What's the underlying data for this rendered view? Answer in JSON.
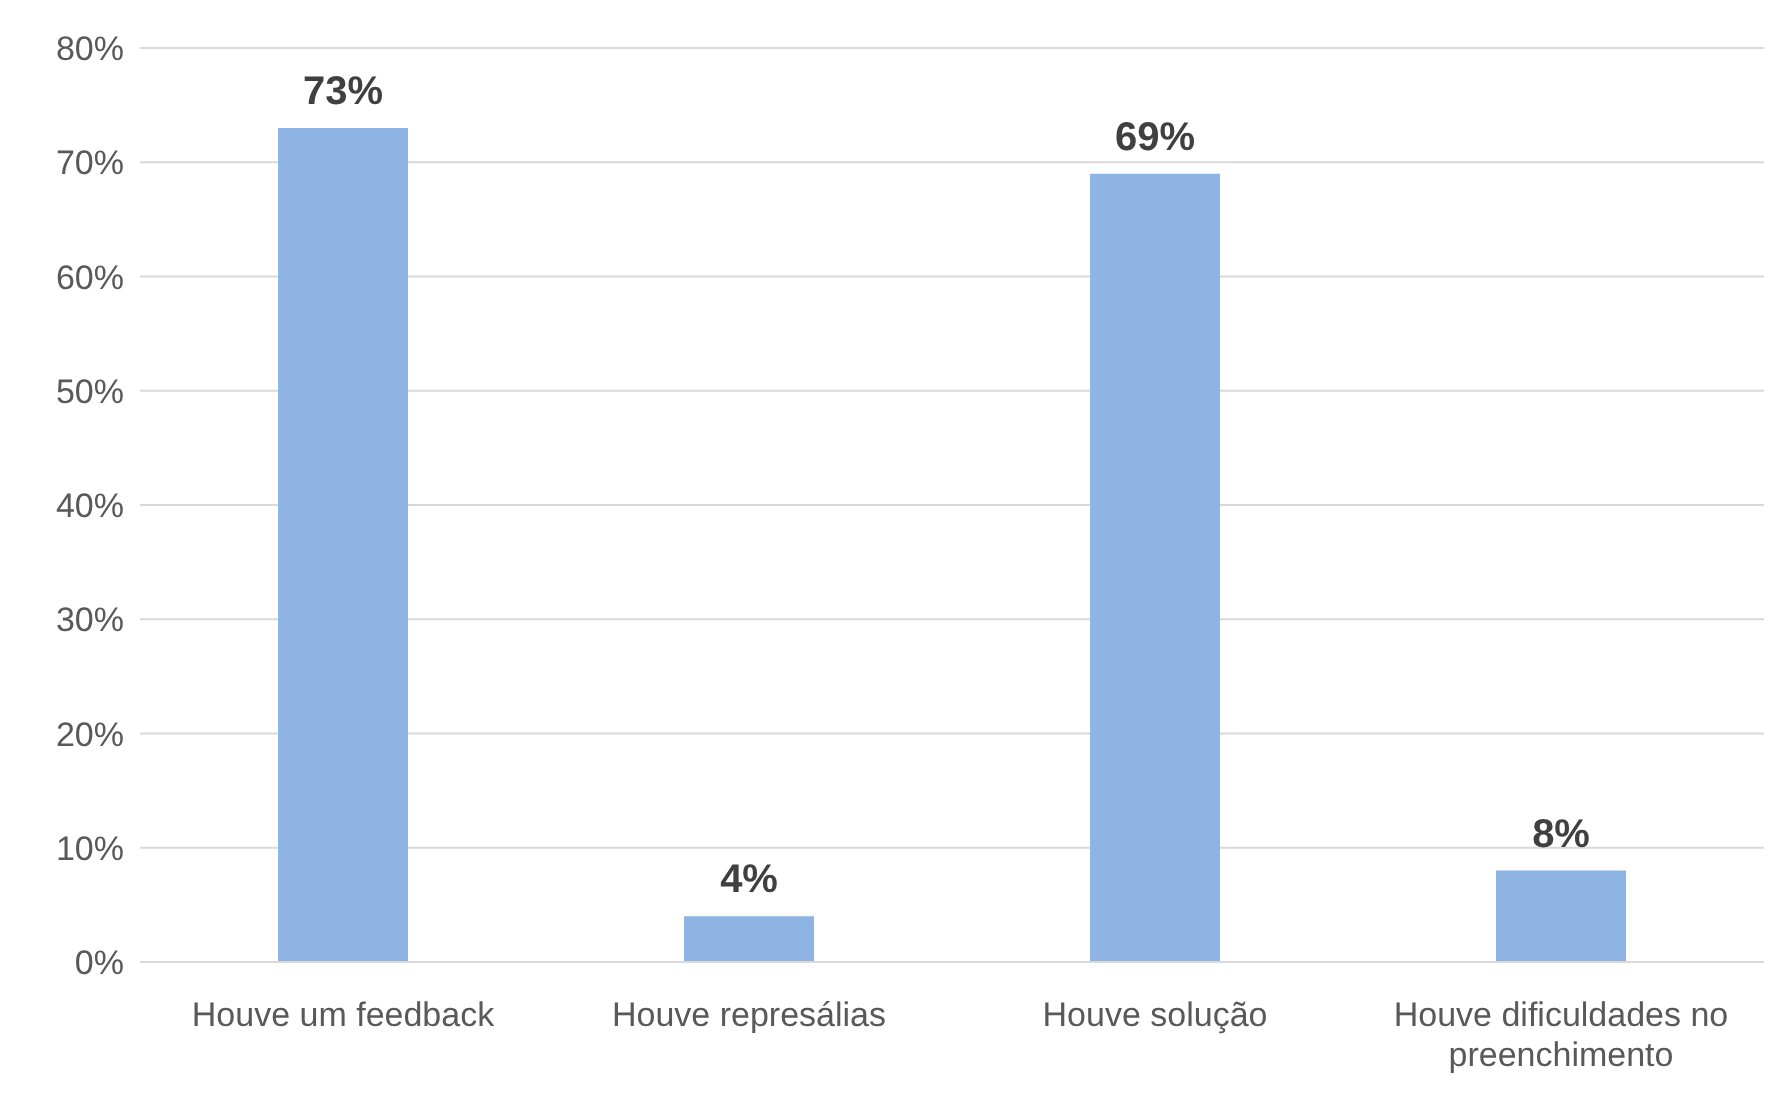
{
  "chart_data": {
    "type": "bar",
    "categories": [
      "Houve um feedback",
      "Houve represálias",
      "Houve solução",
      "Houve dificuldades no preenchimento"
    ],
    "values": [
      73,
      4,
      69,
      8
    ],
    "color": "#8eb4e3",
    "value_labels": [
      "73%",
      "4%",
      "69%",
      "8%"
    ],
    "ylim": [
      0,
      80
    ],
    "yticks": [
      {
        "value": 0,
        "label": "0%"
      },
      {
        "value": 10,
        "label": "10%"
      },
      {
        "value": 20,
        "label": "20%"
      },
      {
        "value": 30,
        "label": "30%"
      },
      {
        "value": 40,
        "label": "40%"
      },
      {
        "value": 50,
        "label": "50%"
      },
      {
        "value": 60,
        "label": "60%"
      },
      {
        "value": 70,
        "label": "70%"
      },
      {
        "value": 80,
        "label": "80%"
      }
    ],
    "grid": "y",
    "legend": false
  }
}
